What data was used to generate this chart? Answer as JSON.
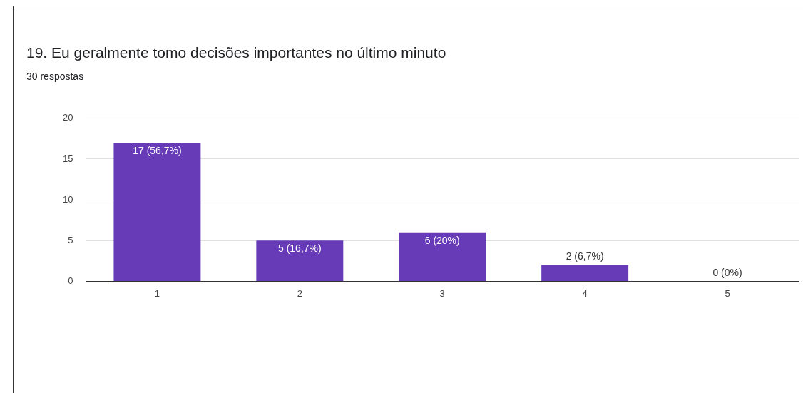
{
  "chart_data": {
    "type": "bar",
    "title": "19. Eu geralmente tomo decisões importantes no último minuto",
    "subtitle": "30 respostas",
    "categories": [
      "1",
      "2",
      "3",
      "4",
      "5"
    ],
    "values": [
      17,
      5,
      6,
      2,
      0
    ],
    "value_labels": [
      "17 (56,7%)",
      "5 (16,7%)",
      "6 (20%)",
      "2 (6,7%)",
      "0 (0%)"
    ],
    "color": "#673ab7",
    "ylim": [
      0,
      20
    ],
    "yticks": [
      0,
      5,
      10,
      15,
      20
    ],
    "grid": "y"
  }
}
